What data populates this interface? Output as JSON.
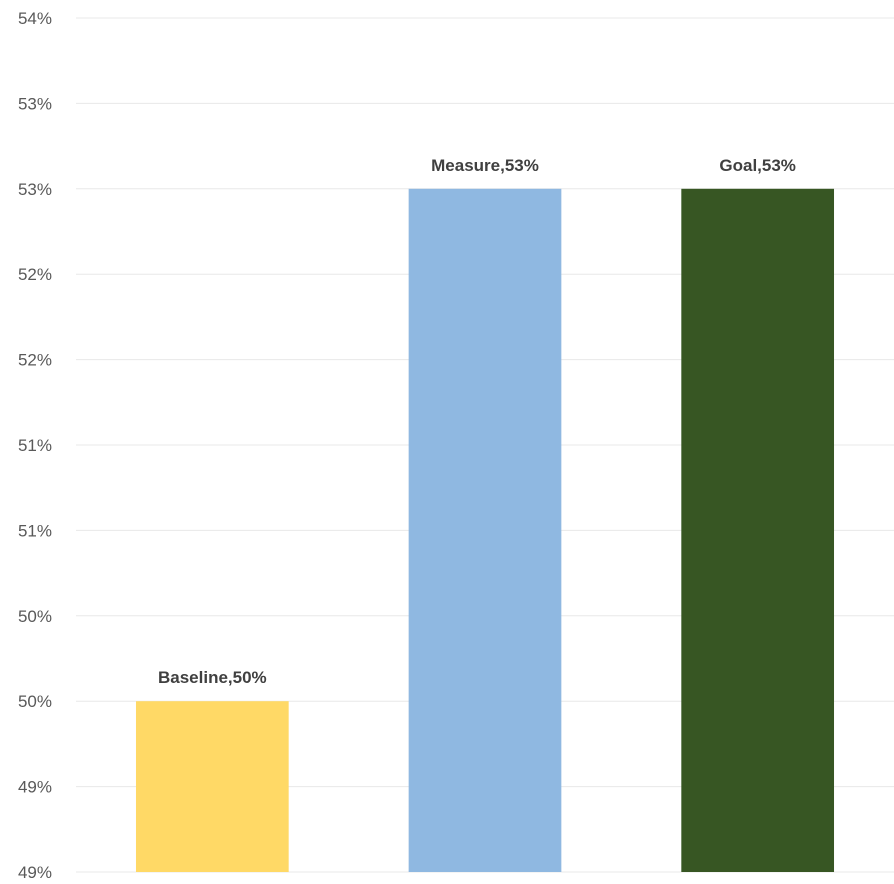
{
  "chart_data": {
    "type": "bar",
    "title": "",
    "xlabel": "",
    "ylabel": "",
    "categories": [
      "Baseline",
      "Measure",
      "Goal"
    ],
    "values": [
      0.5,
      0.53,
      0.53
    ],
    "data_labels": [
      "Baseline,50%",
      "Measure,53%",
      "Goal,53%"
    ],
    "colors": [
      "#ffd966",
      "#8fb8e1",
      "#375623"
    ],
    "ylim": [
      0.49,
      0.54
    ],
    "yticks": [
      0.49,
      0.495,
      0.5,
      0.505,
      0.51,
      0.515,
      0.52,
      0.525,
      0.53,
      0.535,
      0.54
    ],
    "ytick_labels": [
      "49%",
      "49%",
      "50%",
      "50%",
      "51%",
      "51%",
      "52%",
      "52%",
      "53%",
      "53%",
      "54%"
    ],
    "grid": true,
    "legend": "none"
  }
}
